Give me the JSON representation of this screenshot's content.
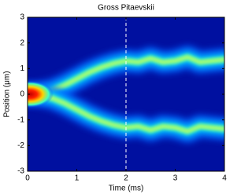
{
  "chart_data": {
    "type": "heatmap-ridges",
    "title": "Gross Pitaevskii",
    "x_label": "Time (ms)",
    "y_label": "Position (μm)",
    "xlim": [
      0,
      4
    ],
    "ylim": [
      -3,
      3
    ],
    "xticks": [
      0,
      1,
      2,
      3,
      4
    ],
    "yticks": [
      -3,
      -2,
      -1,
      0,
      1,
      2,
      3
    ],
    "vline": 2,
    "x": [
      0,
      0.25,
      0.5,
      0.75,
      1,
      1.25,
      1.5,
      1.75,
      2,
      2.25,
      2.5,
      2.75,
      3,
      3.25,
      3.5,
      3.75,
      4
    ],
    "series": [
      {
        "values": [
          0,
          0.05,
          0.15,
          0.35,
          0.6,
          0.85,
          1.05,
          1.2,
          1.3,
          1.25,
          1.4,
          1.25,
          1.3,
          1.45,
          1.25,
          1.3,
          1.35
        ]
      },
      {
        "values": [
          0,
          -0.05,
          -0.15,
          -0.35,
          -0.6,
          -0.85,
          -1.05,
          -1.2,
          -1.3,
          -1.25,
          -1.4,
          -1.25,
          -1.3,
          -1.45,
          -1.25,
          -1.3,
          -1.35
        ]
      }
    ]
  }
}
